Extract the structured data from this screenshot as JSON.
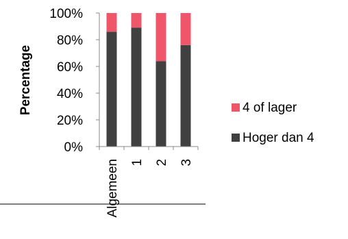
{
  "chart_data": {
    "type": "bar",
    "stacked": true,
    "percent": true,
    "categories": [
      "Algemeen",
      "1",
      "2",
      "3"
    ],
    "series": [
      {
        "name": "Hoger dan 4",
        "values": [
          86,
          89,
          64,
          76
        ],
        "color": "#404040"
      },
      {
        "name": "4 of lager",
        "values": [
          14,
          11,
          36,
          24
        ],
        "color": "#f0566a"
      }
    ],
    "ylabel": "Percentage",
    "xlabel": "",
    "ylim": [
      0,
      100
    ],
    "yticks": [
      "0%",
      "20%",
      "40%",
      "60%",
      "80%",
      "100%"
    ],
    "grid": false,
    "legend": "right"
  }
}
